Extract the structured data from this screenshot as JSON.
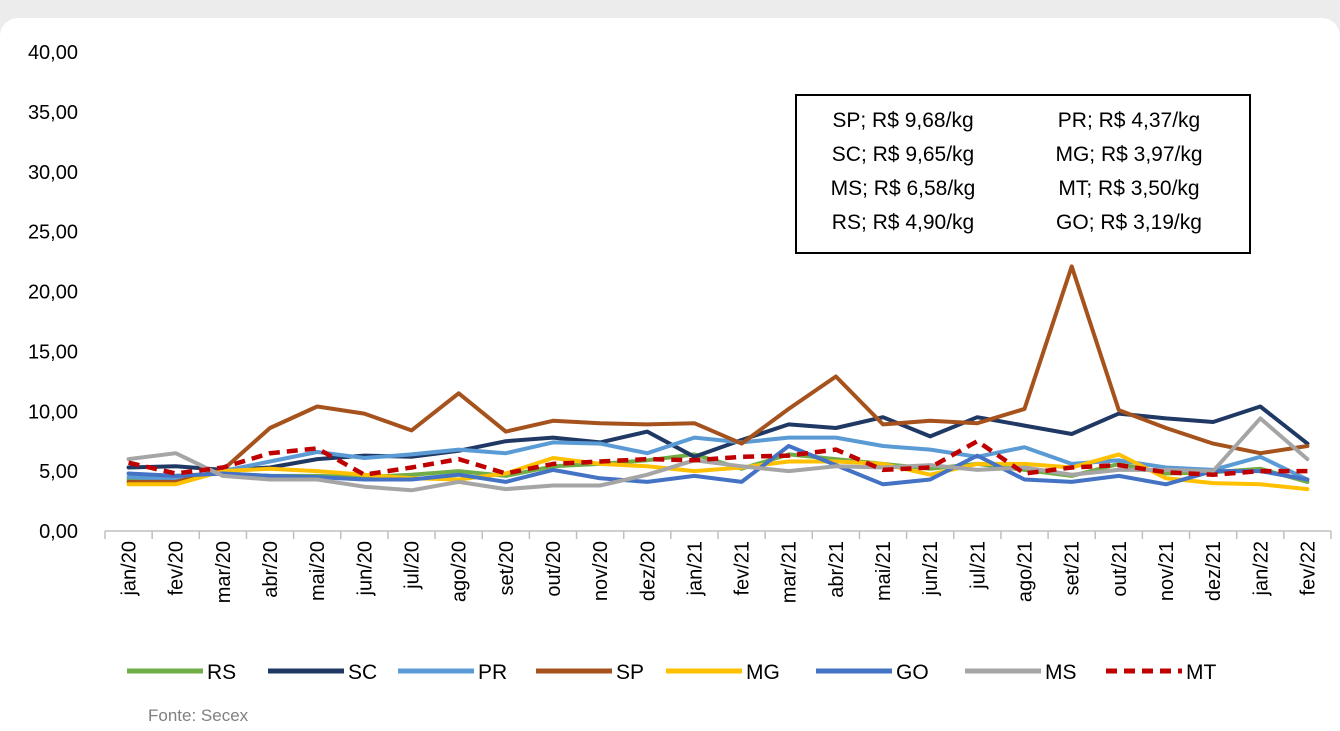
{
  "source": "Fonte: Secex",
  "colors": {
    "RS": "#70ad47",
    "SC": "#203864",
    "PR": "#5b9bd5",
    "SP": "#a5521c",
    "MG": "#ffc000",
    "GO": "#4472c4",
    "MS": "#a5a5a5",
    "MT": "#c00000"
  },
  "chart_data": {
    "type": "line",
    "title": "",
    "xlabel": "",
    "ylabel": "",
    "ylim": [
      0,
      40
    ],
    "ytick_labels": [
      "0,00",
      "5,00",
      "10,00",
      "15,00",
      "20,00",
      "25,00",
      "30,00",
      "35,00",
      "40,00"
    ],
    "categories": [
      "jan/20",
      "fev/20",
      "mar/20",
      "abr/20",
      "mai/20",
      "jun/20",
      "jul/20",
      "ago/20",
      "set/20",
      "out/20",
      "nov/20",
      "dez/20",
      "jan/21",
      "fev/21",
      "mar/21",
      "abr/21",
      "mai/21",
      "jun/21",
      "jul/21",
      "ago/21",
      "set/21",
      "out/21",
      "nov/21",
      "dez/21",
      "jan/22",
      "fev/22"
    ],
    "series": [
      {
        "name": "RS",
        "values": [
          4.3,
          4.6,
          4.8,
          4.6,
          4.6,
          4.5,
          4.7,
          5.0,
          4.6,
          5.4,
          5.6,
          5.9,
          6.4,
          5.2,
          6.4,
          6.0,
          5.6,
          5.2,
          5.6,
          5.1,
          4.6,
          5.6,
          4.8,
          4.9,
          5.2,
          4.1
        ]
      },
      {
        "name": "SC",
        "values": [
          5.3,
          5.4,
          5.1,
          5.3,
          6.0,
          6.3,
          6.2,
          6.7,
          7.5,
          7.8,
          7.4,
          8.3,
          6.2,
          7.6,
          8.9,
          8.6,
          9.5,
          7.9,
          9.5,
          8.8,
          8.1,
          9.8,
          9.4,
          9.1,
          10.4,
          7.3
        ]
      },
      {
        "name": "PR",
        "values": [
          4.5,
          4.3,
          5.0,
          5.8,
          6.6,
          6.1,
          6.4,
          6.8,
          6.5,
          7.4,
          7.3,
          6.5,
          7.8,
          7.4,
          7.8,
          7.8,
          7.1,
          6.8,
          6.2,
          7.0,
          5.6,
          5.9,
          5.3,
          5.1,
          6.2,
          4.3
        ]
      },
      {
        "name": "SP",
        "values": [
          4.1,
          4.1,
          5.1,
          8.6,
          10.4,
          9.8,
          8.4,
          11.5,
          8.3,
          9.2,
          9.0,
          8.9,
          9.0,
          7.3,
          10.2,
          12.9,
          8.9,
          9.2,
          9.0,
          10.2,
          22.1,
          10.1,
          8.6,
          7.3,
          6.5,
          7.1
        ]
      },
      {
        "name": "MG",
        "values": [
          3.9,
          3.9,
          5.0,
          5.2,
          5.0,
          4.7,
          4.4,
          4.3,
          4.8,
          6.1,
          5.6,
          5.4,
          5.0,
          5.3,
          5.8,
          5.8,
          5.6,
          4.7,
          5.6,
          5.6,
          5.3,
          6.4,
          4.4,
          4.0,
          3.9,
          3.5
        ]
      },
      {
        "name": "GO",
        "values": [
          4.8,
          4.6,
          4.8,
          4.6,
          4.5,
          4.3,
          4.3,
          4.7,
          4.1,
          5.1,
          4.4,
          4.1,
          4.6,
          4.1,
          7.1,
          5.5,
          3.9,
          4.3,
          6.3,
          4.3,
          4.1,
          4.6,
          3.9,
          5.0,
          5.0,
          4.3
        ]
      },
      {
        "name": "MS",
        "values": [
          6.0,
          6.5,
          4.6,
          4.3,
          4.3,
          3.7,
          3.4,
          4.1,
          3.5,
          3.8,
          3.8,
          4.7,
          5.9,
          5.4,
          5.0,
          5.4,
          5.3,
          5.5,
          5.1,
          5.3,
          4.7,
          5.1,
          5.1,
          5.0,
          9.4,
          6.0
        ]
      },
      {
        "name": "MT",
        "values": [
          5.7,
          4.8,
          5.3,
          6.5,
          6.9,
          4.7,
          5.3,
          6.0,
          4.8,
          5.6,
          5.8,
          6.0,
          5.9,
          6.2,
          6.3,
          6.8,
          5.1,
          5.3,
          7.5,
          4.8,
          5.3,
          5.5,
          4.9,
          4.7,
          5.0,
          5.0
        ]
      }
    ],
    "legend_position": "bottom",
    "grid": false,
    "annotation": {
      "left": [
        "SP; R$ 9,68/kg",
        "SC; R$ 9,65/kg",
        "MS; R$ 6,58/kg",
        "RS; R$ 4,90/kg"
      ],
      "right": [
        "PR; R$ 4,37/kg",
        "MG; R$ 3,97/kg",
        "MT; R$ 3,50/kg",
        "GO; R$ 3,19/kg"
      ]
    }
  }
}
